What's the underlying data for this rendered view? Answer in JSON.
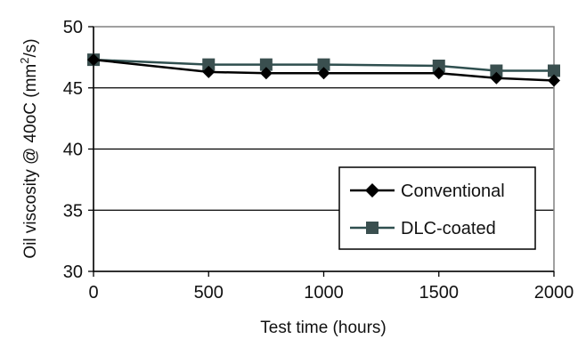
{
  "chart_data": {
    "type": "line",
    "x": [
      0,
      500,
      750,
      1000,
      1500,
      1750,
      2000
    ],
    "series": [
      {
        "name": "Conventional",
        "values": [
          47.3,
          46.3,
          46.2,
          46.2,
          46.2,
          45.8,
          45.6
        ],
        "color": "#000000",
        "marker": "diamond"
      },
      {
        "name": "DLC-coated",
        "values": [
          47.3,
          46.9,
          46.9,
          46.9,
          46.8,
          46.4,
          46.4
        ],
        "color": "#2f4f4f",
        "marker": "square"
      }
    ],
    "xlabel": "Test time (hours)",
    "ylabel": "Oil viscosity @ 40oC (mm²/s)",
    "ylabel_parts": {
      "pre": "Oil viscosity @ 40oC (mm",
      "sup": "2",
      "post": "/s)"
    },
    "xticks": [
      0,
      500,
      1000,
      1500,
      2000
    ],
    "yticks": [
      30,
      35,
      40,
      45,
      50
    ],
    "xlim": [
      0,
      2000
    ],
    "ylim": [
      30,
      50
    ],
    "grid": "horizontal",
    "legend_position": "bottom-right"
  }
}
